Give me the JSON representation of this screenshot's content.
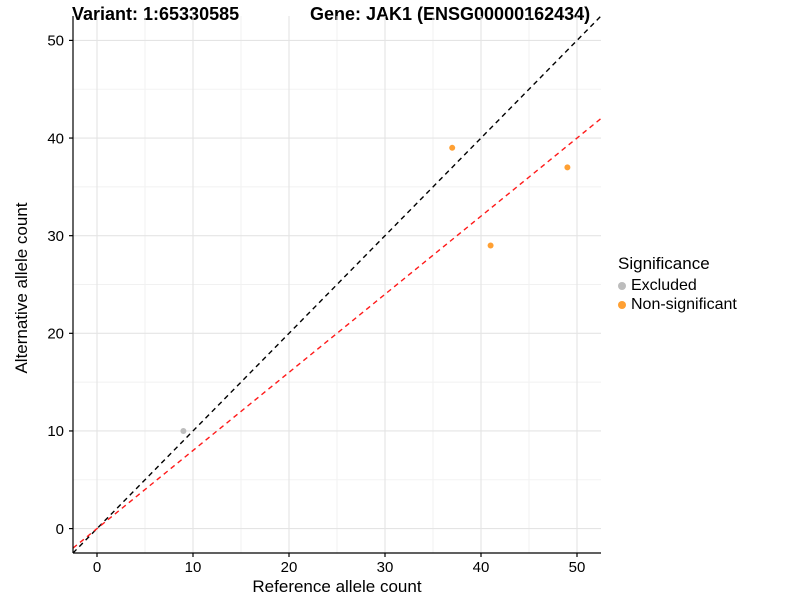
{
  "titles": {
    "variant": "Variant: 1:65330585",
    "gene": "Gene: JAK1 (ENSG00000162434)"
  },
  "legend": {
    "title": "Significance",
    "items": [
      {
        "label": "Excluded",
        "color": "#BDBDBD"
      },
      {
        "label": "Non-significant",
        "color": "#FFA033"
      }
    ]
  },
  "chart_data": {
    "type": "scatter",
    "title": "Variant: 1:65330585   Gene: JAK1 (ENSG00000162434)",
    "xlabel": "Reference allele count",
    "ylabel": "Alternative allele count",
    "xlim": [
      -2.5,
      52.5
    ],
    "ylim": [
      -2.5,
      52.5
    ],
    "x_ticks": [
      0,
      10,
      20,
      30,
      40,
      50
    ],
    "y_ticks": [
      0,
      10,
      20,
      30,
      40,
      50
    ],
    "minor_ticks": [
      5,
      15,
      25,
      35,
      45
    ],
    "grid": true,
    "legend_position": "right",
    "series": [
      {
        "name": "Excluded",
        "color": "#BDBDBD",
        "points": [
          {
            "x": 9,
            "y": 10
          }
        ]
      },
      {
        "name": "Non-significant",
        "color": "#FFA033",
        "points": [
          {
            "x": 37,
            "y": 39
          },
          {
            "x": 41,
            "y": 29
          },
          {
            "x": 49,
            "y": 37
          }
        ]
      }
    ],
    "lines": [
      {
        "name": "identity-line",
        "slope": 1.0,
        "intercept": 0,
        "color": "#000000",
        "style": "dashed"
      },
      {
        "name": "expected-ratio-line",
        "slope": 0.8,
        "intercept": 0,
        "color": "#FF1A1A",
        "style": "dashed"
      }
    ],
    "colors": {
      "grid_major": "#E4E4E4",
      "grid_minor": "#F1F1F1",
      "axis": "#000000",
      "background": "#FFFFFF"
    }
  }
}
